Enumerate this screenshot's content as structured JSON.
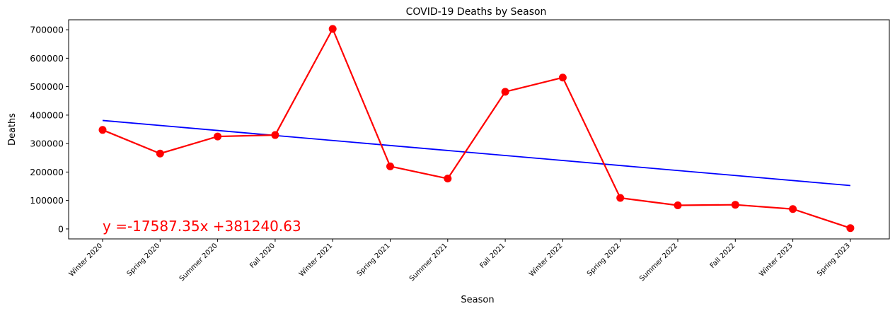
{
  "chart_data": {
    "type": "line",
    "title": "COVID-19 Deaths by Season",
    "xlabel": "Season",
    "ylabel": "Deaths",
    "categories": [
      "Winter 2020",
      "Spring 2020",
      "Summer 2020",
      "Fall 2020",
      "Winter 2021",
      "Spring 2021",
      "Summer 2021",
      "Fall 2021",
      "Winter 2022",
      "Spring 2022",
      "Summer 2022",
      "Fall 2022",
      "Winter 2023",
      "Spring 2023"
    ],
    "series": [
      {
        "color": "#ff0000",
        "values": [
          348000,
          265000,
          325000,
          330000,
          703000,
          220000,
          177000,
          482000,
          532000,
          109000,
          83000,
          85000,
          70000,
          3000
        ]
      }
    ],
    "trendline": {
      "slope": -17587.35,
      "intercept": 381240.63,
      "color": "#0000ff",
      "equation_label": "y =-17587.35x +381240.63",
      "label_color": "#ff0000"
    },
    "yticks": [
      0,
      100000,
      200000,
      300000,
      400000,
      500000,
      600000,
      700000
    ],
    "ylim": [
      -35000,
      735000
    ],
    "grid": false,
    "legend": "none"
  }
}
